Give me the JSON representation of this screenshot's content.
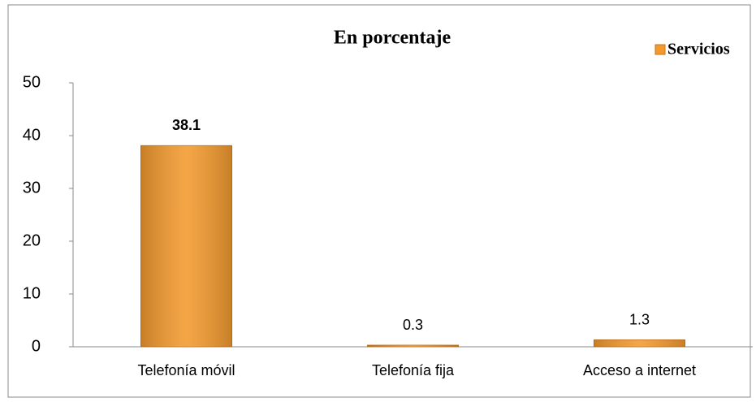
{
  "chart_data": {
    "type": "bar",
    "title": "En porcentaje",
    "categories": [
      "Telefonía móvil",
      "Telefonía fija",
      "Acceso a internet"
    ],
    "series": [
      {
        "name": "Servicios",
        "color": "#f39a2e",
        "values": [
          38.1,
          0.3,
          1.3
        ]
      }
    ],
    "ylim": [
      0,
      50
    ],
    "yticks": [
      0,
      10,
      20,
      30,
      40,
      50
    ],
    "grid": false,
    "legend": "top-right"
  }
}
